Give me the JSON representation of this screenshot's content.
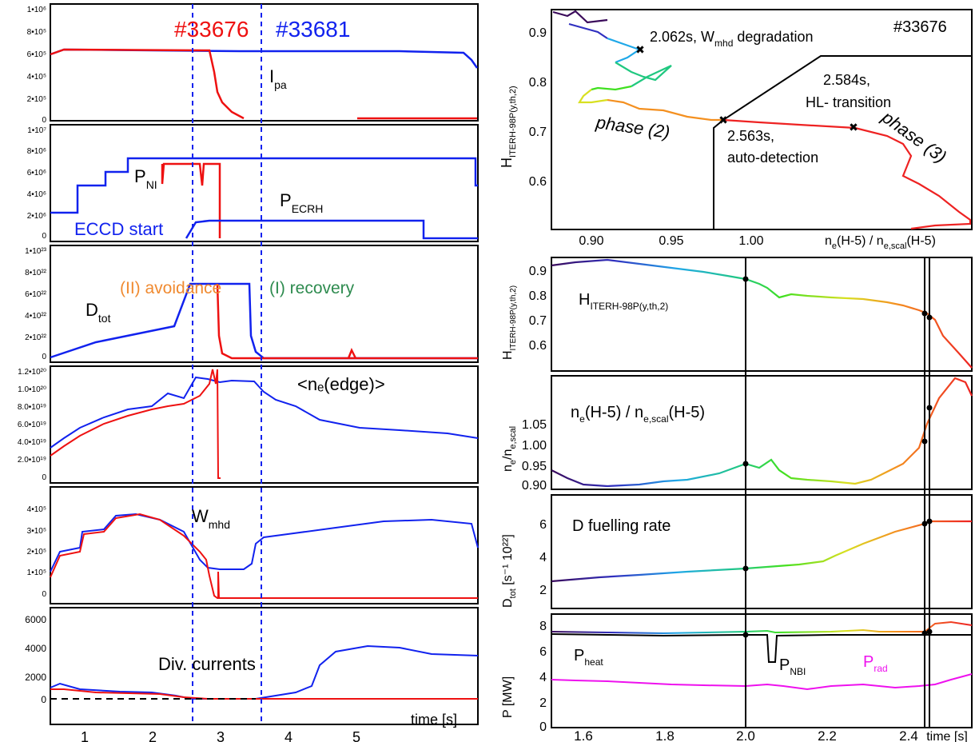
{
  "shots": {
    "red": "#33676",
    "blue": "#33681"
  },
  "time_axis": {
    "label": "time [s]",
    "ticks": [
      "1",
      "2",
      "3",
      "4",
      "5"
    ]
  },
  "colors": {
    "red": "#ee1111",
    "blue": "#1122ee",
    "orange": "#f08a30",
    "green": "#2e8b4f",
    "magenta": "#ee11ee",
    "black": "#000000"
  },
  "left_annotations": {
    "ipa": "I",
    "ipa_sub": "pa",
    "pni": "P",
    "pni_sub": "NI",
    "pecrh": "P",
    "pecrh_sub": "ECRH",
    "eccd": "ECCD start",
    "avoidance": "(II) avoidance",
    "recovery": "(I) recovery",
    "dtot": "D",
    "dtot_sub": "tot",
    "ne_edge": "<nₑ(edge)>",
    "wmhd": "W",
    "wmhd_sub": "mhd",
    "div": "Div. currents"
  },
  "right_annotations": {
    "shot": "#33676",
    "p1": "2.062s, W",
    "p1_sub": "mhd",
    "p1_tail": " degradation",
    "p2a": "2.563s,",
    "p2b": "auto-detection",
    "p3a": "2.584s,",
    "p3b": "HL- transition",
    "phase2": "phase (2)",
    "phase3": "phase (3)",
    "h_label": "H",
    "h_sub": "ITERH-98P(y,th,2)",
    "ne_label": "n",
    "ne_sub1": "e",
    "ne_mid": "(H-5) / n",
    "ne_sub2": "e,scal",
    "ne_tail": "(H-5)",
    "fuel": "D fuelling rate",
    "dtot_ylabel": "D",
    "dtot_ysub": "tot",
    "dtot_yunit": " [s⁻¹ 10²²]",
    "neratio_ylabel": "n",
    "neratio_ysub": "e",
    "neratio_mid": "/n",
    "neratio_ysub2": "e,scal",
    "pheat": "P",
    "pheat_sub": "heat",
    "pnbi": "P",
    "pnbi_sub": "NBI",
    "prad": "P",
    "prad_sub": "rad",
    "p_ylabel": "P  [MW]",
    "time_label": "time [s]"
  },
  "chart_data": [
    {
      "type": "line",
      "panel": "left-1 plasma current",
      "ytick_labels": [
        "0",
        "2•10⁵",
        "4•10⁵",
        "6•10⁵",
        "8•10⁵",
        "1•10⁶"
      ],
      "ylim": [
        0,
        1000000
      ],
      "xlim": [
        0.5,
        6.0
      ],
      "series": [
        {
          "name": "#33681",
          "x": [
            0.5,
            0.7,
            5.8,
            5.9,
            6.0
          ],
          "y": [
            590000,
            630000,
            630000,
            520000,
            440000
          ]
        },
        {
          "name": "#33676",
          "x": [
            0.5,
            2.6,
            2.7,
            2.8,
            2.9,
            3.0,
            3.2,
            3.4
          ],
          "y": [
            590000,
            620000,
            450000,
            230000,
            90000,
            30000,
            5000,
            0
          ]
        }
      ]
    },
    {
      "type": "line",
      "panel": "left-2 heating power",
      "ytick_labels": [
        "0",
        "2•10⁶",
        "4•10⁶",
        "6•10⁶",
        "8•10⁶",
        "1•10⁷"
      ],
      "ylim": [
        0,
        10000000
      ],
      "xlim": [
        0.5,
        6.0
      ],
      "series": [
        {
          "name": "#33681 P_NI",
          "x": [
            0.5,
            0.8,
            0.8,
            1.2,
            1.2,
            1.45,
            1.45,
            5.95,
            5.95,
            6.0
          ],
          "y": [
            2300000,
            2300000,
            4800000,
            4800000,
            6000000,
            6000000,
            7300000,
            7300000,
            4800000,
            4800000
          ]
        },
        {
          "name": "#33681 P_ECRH",
          "x": [
            2.5,
            2.55,
            5.3,
            5.3,
            6.0
          ],
          "y": [
            0,
            1600000,
            1600000,
            0,
            0
          ]
        }
      ]
    },
    {
      "type": "line",
      "panel": "left-3 deuterium fuelling",
      "ytick_labels": [
        "0",
        "2•10²²",
        "4•10²²",
        "6•10²²",
        "8•10²²",
        "1•10²³"
      ],
      "ylim": [
        0,
        1e+23
      ],
      "xlim": [
        0.5,
        6.0
      ],
      "series": [
        {
          "name": "#33681",
          "x": [
            0.5,
            2.3,
            2.6,
            3.3,
            3.3,
            3.5,
            6.0
          ],
          "y": [
            0,
            2.9e+22,
            6.7e+22,
            6.7e+22,
            2e+21,
            0,
            0
          ]
        },
        {
          "name": "#33676",
          "x": [
            2.6,
            2.95,
            3.0,
            3.1,
            6.0
          ],
          "y": [
            6.7e+22,
            6.7e+22,
            1e+21,
            0,
            0
          ]
        }
      ]
    },
    {
      "type": "line",
      "panel": "left-4 edge density",
      "ytick_labels": [
        "0",
        "2.0•10¹⁹",
        "4.0•10¹⁹",
        "6.0•10¹⁹",
        "8.0•10¹⁹",
        "1.0•10²⁰",
        "1.2•10²⁰"
      ],
      "ylim": [
        0,
        1.2e+20
      ],
      "xlim": [
        0.5,
        6.0
      ],
      "series": [
        {
          "name": "#33681",
          "x": [
            0.5,
            1.0,
            1.5,
            2.0,
            2.5,
            2.7,
            3.0,
            3.5,
            4.0,
            5.0,
            6.0
          ],
          "y": [
            3e+19,
            5e+19,
            6.5e+19,
            8e+19,
            8.5e+19,
            1.05e+20,
            1.05e+20,
            1e+20,
            8.5e+19,
            6.5e+19,
            5.5e+19
          ]
        },
        {
          "name": "#33676",
          "x": [
            0.5,
            1.0,
            1.5,
            2.0,
            2.5,
            2.8,
            2.95,
            2.95,
            3.0
          ],
          "y": [
            2.5e+19,
            4.5e+19,
            6e+19,
            7e+19,
            8e+19,
            1e+20,
            1.1e+20,
            0,
            0
          ]
        }
      ]
    },
    {
      "type": "line",
      "panel": "left-5 stored energy",
      "ytick_labels": [
        "0",
        "1•10⁵",
        "2•10⁵",
        "3•10⁵",
        "4•10⁵"
      ],
      "ylim": [
        0,
        450000
      ],
      "xlim": [
        0.5,
        6.0
      ],
      "series": [
        {
          "name": "#33681",
          "x": [
            0.5,
            0.9,
            1.3,
            1.6,
            2.0,
            2.5,
            2.8,
            3.3,
            3.4,
            4.0,
            5.0,
            6.0
          ],
          "y": [
            150000,
            250000,
            300000,
            360000,
            350000,
            300000,
            230000,
            230000,
            340000,
            370000,
            400000,
            390000
          ]
        },
        {
          "name": "#33676",
          "x": [
            0.5,
            1.0,
            1.5,
            2.0,
            2.5,
            2.7,
            2.85,
            2.95,
            3.0,
            6.0
          ],
          "y": [
            130000,
            270000,
            370000,
            350000,
            290000,
            220000,
            140000,
            30000,
            0,
            0
          ]
        }
      ]
    },
    {
      "type": "line",
      "panel": "left-6 divertor currents",
      "ytick_labels": [
        "0",
        "2000",
        "4000",
        "6000"
      ],
      "ylim": [
        -300,
        7000
      ],
      "xlim": [
        0.5,
        6.0
      ],
      "series": [
        {
          "name": "#33681",
          "x": [
            0.5,
            1.0,
            2.0,
            2.5,
            2.6,
            3.6,
            4.3,
            4.5,
            5.0,
            6.0
          ],
          "y": [
            1200,
            700,
            400,
            100,
            0,
            0,
            300,
            2000,
            2500,
            2000
          ]
        },
        {
          "name": "#33676",
          "x": [
            0.5,
            1.0,
            2.0,
            2.5,
            3.0,
            6.0
          ],
          "y": [
            1000,
            500,
            300,
            0,
            0,
            0
          ]
        }
      ]
    },
    {
      "type": "line",
      "panel": "right-1 confinement vs normalized density",
      "xtick_labels": [
        "0.90",
        "0.95",
        "1.00"
      ],
      "ytick_labels": [
        "0.6",
        "0.7",
        "0.8",
        "0.9"
      ],
      "xlim": [
        0.878,
        1.09
      ],
      "ylim": [
        0.515,
        0.945
      ],
      "series": [
        {
          "name": "#33676 trajectory",
          "x": [
            0.88,
            0.9,
            0.91,
            0.905,
            0.915,
            0.925,
            0.92,
            0.93,
            0.94,
            0.93,
            0.89,
            0.9,
            0.92,
            0.93,
            0.95,
            0.97,
            1.0,
            1.04,
            1.07,
            1.08,
            1.09
          ],
          "y": [
            0.94,
            0.93,
            0.92,
            0.905,
            0.89,
            0.86,
            0.83,
            0.8,
            0.83,
            0.81,
            0.78,
            0.75,
            0.76,
            0.74,
            0.73,
            0.72,
            0.715,
            0.705,
            0.67,
            0.6,
            0.54
          ]
        }
      ]
    },
    {
      "type": "line",
      "panel": "right-2 H factor",
      "ytick_labels": [
        "0.6",
        "0.7",
        "0.8",
        "0.9"
      ],
      "ylim": [
        0.515,
        0.945
      ],
      "xlim": [
        1.5,
        2.66
      ],
      "series": [
        {
          "name": "H_ITERH-98P(y,th,2)",
          "x": [
            1.5,
            1.6,
            1.8,
            2.0,
            2.062,
            2.1,
            2.15,
            2.2,
            2.3,
            2.4,
            2.563,
            2.584,
            2.62,
            2.66
          ],
          "y": [
            0.93,
            0.94,
            0.93,
            0.89,
            0.86,
            0.82,
            0.78,
            0.8,
            0.79,
            0.77,
            0.72,
            0.705,
            0.62,
            0.52
          ]
        }
      ]
    },
    {
      "type": "line",
      "panel": "right-3 density ratio",
      "ytick_labels": [
        "0.90",
        "0.95",
        "1.00",
        "1.05"
      ],
      "ylim": [
        0.878,
        1.095
      ],
      "xlim": [
        1.5,
        2.66
      ],
      "series": [
        {
          "name": "n_e(H-5)/n_e,scal(H-5)",
          "x": [
            1.5,
            1.6,
            1.8,
            2.0,
            2.062,
            2.1,
            2.2,
            2.3,
            2.4,
            2.5,
            2.563,
            2.584,
            2.62,
            2.66
          ],
          "y": [
            0.91,
            0.89,
            0.885,
            0.91,
            0.925,
            0.92,
            0.93,
            0.9,
            0.89,
            0.92,
            0.97,
            1.035,
            1.09,
            1.06
          ]
        }
      ]
    },
    {
      "type": "line",
      "panel": "right-4 D fuelling rate",
      "ytick_labels": [
        "2",
        "4",
        "6"
      ],
      "ylim": [
        0,
        7
      ],
      "xlim": [
        1.5,
        2.66
      ],
      "series": [
        {
          "name": "D fuelling rate",
          "x": [
            1.5,
            2.062,
            2.3,
            2.563,
            2.584,
            2.66
          ],
          "y": [
            1.6,
            2.4,
            2.9,
            6.4,
            6.6,
            6.6
          ]
        }
      ]
    },
    {
      "type": "line",
      "panel": "right-5 powers",
      "ytick_labels": [
        "0",
        "2",
        "4",
        "6",
        "8"
      ],
      "ylim": [
        0,
        9
      ],
      "xlim": [
        1.5,
        2.66
      ],
      "xtick_labels": [
        "1.6",
        "1.8",
        "2.0",
        "2.2",
        "2.4"
      ],
      "series": [
        {
          "name": "P_heat",
          "x": [
            1.5,
            2.13,
            2.13,
            2.15,
            2.15,
            2.66
          ],
          "y": [
            7.1,
            7.1,
            4.7,
            4.7,
            7.1,
            7.1
          ]
        },
        {
          "name": "P_rad",
          "x": [
            1.5,
            1.8,
            2.0,
            2.2,
            2.4,
            2.55,
            2.66
          ],
          "y": [
            3.5,
            3.3,
            3.1,
            2.8,
            2.9,
            3.0,
            3.9
          ]
        }
      ]
    }
  ]
}
